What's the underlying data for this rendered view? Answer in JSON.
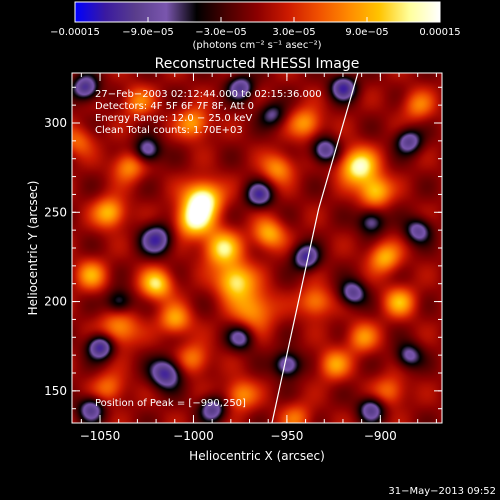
{
  "chart_data": {
    "type": "heatmap",
    "title": "Reconstructed RHESSI Image",
    "xlabel": "Heliocentric X (arcsec)",
    "ylabel": "Heliocentric Y (arcsec)",
    "xlim": [
      -1065,
      -867
    ],
    "ylim": [
      132,
      328
    ],
    "x_ticks": [
      -1050,
      -1000,
      -950,
      -900
    ],
    "y_ticks": [
      150,
      200,
      250,
      300
    ],
    "x_tick_labels": [
      "−1050",
      "−1000",
      "−950",
      "−900"
    ],
    "y_tick_labels": [
      "150",
      "200",
      "250",
      "300"
    ],
    "colorbar": {
      "range": [
        -0.00015,
        0.00015
      ],
      "tick_values": [
        -0.00015,
        -9e-05,
        -3e-05,
        3e-05,
        9e-05,
        0.00015
      ],
      "tick_labels": [
        "−0.00015",
        "−9.0e−05",
        "−3.0e−05",
        "3.0e−05",
        "9.0e−05",
        "0.00015"
      ],
      "label": "(photons cm⁻² s⁻¹ asec⁻²)",
      "colormap": [
        "#0000ff",
        "#3a1aa0",
        "#5a3e8c",
        "#7a56ae",
        "#000000",
        "#4a0000",
        "#8c0000",
        "#cc1a00",
        "#f05000",
        "#ff8a00",
        "#ffc400",
        "#ffff9c",
        "#ffffff"
      ]
    },
    "info_lines": [
      "27−Feb−2003 02:12:44.000 to 02:15:36.000",
      "Detectors: 4F 5F 6F 7F 8F, Att 0",
      "Energy Range: 12.0 − 25.0 keV",
      "Clean    Total counts: 1.70E+03"
    ],
    "peak_label": "Position of Peak = [−990,250]",
    "limb_line": {
      "x": [
        -958,
        -933,
        -912
      ],
      "y": [
        132,
        252,
        328
      ]
    },
    "blobs": [
      {
        "x": -995,
        "y": 258,
        "s": 7,
        "a": 1.0
      },
      {
        "x": -1000,
        "y": 246,
        "s": 7,
        "a": 0.9
      },
      {
        "x": -985,
        "y": 230,
        "s": 7,
        "a": 0.8
      },
      {
        "x": -978,
        "y": 212,
        "s": 7,
        "a": 0.85
      },
      {
        "x": -968,
        "y": 196,
        "s": 8,
        "a": 0.6
      },
      {
        "x": -1020,
        "y": 210,
        "s": 6,
        "a": 0.8
      },
      {
        "x": -1010,
        "y": 190,
        "s": 6,
        "a": 0.6
      },
      {
        "x": -1045,
        "y": 250,
        "s": 6,
        "a": 0.7
      },
      {
        "x": -1055,
        "y": 215,
        "s": 6,
        "a": 0.55
      },
      {
        "x": -1040,
        "y": 185,
        "s": 7,
        "a": 0.6
      },
      {
        "x": -1000,
        "y": 300,
        "s": 6,
        "a": 0.6
      },
      {
        "x": -1030,
        "y": 312,
        "s": 6,
        "a": 0.45
      },
      {
        "x": -1035,
        "y": 276,
        "s": 6,
        "a": 0.55
      },
      {
        "x": -1000,
        "y": 168,
        "s": 6,
        "a": 0.5
      },
      {
        "x": -975,
        "y": 148,
        "s": 6,
        "a": 0.55
      },
      {
        "x": -1045,
        "y": 152,
        "s": 6,
        "a": 0.45
      },
      {
        "x": -960,
        "y": 238,
        "s": 6,
        "a": 0.65
      },
      {
        "x": -955,
        "y": 275,
        "s": 6,
        "a": 0.55
      },
      {
        "x": -940,
        "y": 300,
        "s": 6,
        "a": 0.6
      },
      {
        "x": -912,
        "y": 276,
        "s": 7,
        "a": 0.95
      },
      {
        "x": -903,
        "y": 262,
        "s": 6,
        "a": 0.75
      },
      {
        "x": -898,
        "y": 225,
        "s": 6,
        "a": 0.65
      },
      {
        "x": -890,
        "y": 200,
        "s": 6,
        "a": 0.6
      },
      {
        "x": -910,
        "y": 180,
        "s": 6,
        "a": 0.5
      },
      {
        "x": -935,
        "y": 200,
        "s": 6,
        "a": 0.55
      },
      {
        "x": -925,
        "y": 165,
        "s": 6,
        "a": 0.55
      },
      {
        "x": -895,
        "y": 150,
        "s": 6,
        "a": 0.45
      },
      {
        "x": -880,
        "y": 310,
        "s": 6,
        "a": 0.45
      },
      {
        "x": -945,
        "y": 135,
        "s": 6,
        "a": 0.4
      },
      {
        "x": -1062,
        "y": 290,
        "s": 6,
        "a": 0.4
      },
      {
        "x": -1050,
        "y": 175,
        "s": 5,
        "a": -0.9
      },
      {
        "x": -1020,
        "y": 235,
        "s": 6,
        "a": -0.8
      },
      {
        "x": -1015,
        "y": 160,
        "s": 6,
        "a": -0.85
      },
      {
        "x": -1025,
        "y": 285,
        "s": 5,
        "a": -0.7
      },
      {
        "x": -1058,
        "y": 320,
        "s": 5,
        "a": -0.8
      },
      {
        "x": -1055,
        "y": 140,
        "s": 5,
        "a": -0.7
      },
      {
        "x": -965,
        "y": 260,
        "s": 5,
        "a": -0.75
      },
      {
        "x": -975,
        "y": 180,
        "s": 5,
        "a": -0.6
      },
      {
        "x": -990,
        "y": 140,
        "s": 5,
        "a": -0.7
      },
      {
        "x": -950,
        "y": 165,
        "s": 5,
        "a": -0.75
      },
      {
        "x": -940,
        "y": 225,
        "s": 5,
        "a": -0.8
      },
      {
        "x": -930,
        "y": 285,
        "s": 5,
        "a": -0.75
      },
      {
        "x": -915,
        "y": 205,
        "s": 5,
        "a": -0.7
      },
      {
        "x": -905,
        "y": 245,
        "s": 5,
        "a": -0.6
      },
      {
        "x": -885,
        "y": 290,
        "s": 5,
        "a": -0.7
      },
      {
        "x": -880,
        "y": 240,
        "s": 5,
        "a": -0.65
      },
      {
        "x": -885,
        "y": 170,
        "s": 5,
        "a": -0.6
      },
      {
        "x": -905,
        "y": 140,
        "s": 5,
        "a": -0.7
      },
      {
        "x": -920,
        "y": 320,
        "s": 5,
        "a": -0.8
      },
      {
        "x": -975,
        "y": 320,
        "s": 5,
        "a": -0.7
      },
      {
        "x": -1040,
        "y": 200,
        "s": 5,
        "a": -0.55
      },
      {
        "x": -958,
        "y": 305,
        "s": 5,
        "a": -0.5
      }
    ]
  },
  "footer": {
    "timestamp": "31−May−2013 09:52"
  }
}
